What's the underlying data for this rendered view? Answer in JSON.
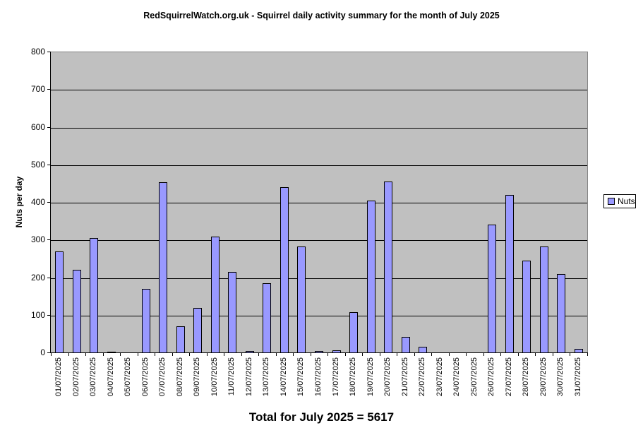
{
  "title": "RedSquirrelWatch.org.uk - Squirrel daily activity summary for the month of July 2025",
  "y_axis": {
    "label": "Nuts per day",
    "ticks": [
      "0",
      "100",
      "200",
      "300",
      "400",
      "500",
      "600",
      "700",
      "800"
    ]
  },
  "legend": {
    "label": "Nuts"
  },
  "footer": {
    "total_label": "Total for July 2025 = 5617"
  },
  "chart_data": {
    "type": "bar",
    "title": "RedSquirrelWatch.org.uk - Squirrel daily activity summary for the month of July 2025",
    "xlabel": "",
    "ylabel": "Nuts per day",
    "ylim": [
      0,
      800
    ],
    "ytick_step": 100,
    "grid": true,
    "legend_position": "right",
    "xtick_rotation": 90,
    "categories": [
      "01/07/2025",
      "02/07/2025",
      "03/07/2025",
      "04/07/2025",
      "05/07/2025",
      "06/07/2025",
      "07/07/2025",
      "08/07/2025",
      "09/07/2025",
      "10/07/2025",
      "11/07/2025",
      "12/07/2025",
      "13/07/2025",
      "14/07/2025",
      "15/07/2025",
      "16/07/2025",
      "17/07/2025",
      "18/07/2025",
      "19/07/2025",
      "20/07/2025",
      "21/07/2025",
      "22/07/2025",
      "23/07/2025",
      "24/07/2025",
      "25/07/2025",
      "26/07/2025",
      "27/07/2025",
      "28/07/2025",
      "29/07/2025",
      "30/07/2025",
      "31/07/2025"
    ],
    "series": [
      {
        "name": "Nuts",
        "values": [
          270,
          222,
          307,
          3,
          0,
          171,
          455,
          71,
          120,
          309,
          216,
          5,
          185,
          442,
          283,
          5,
          8,
          108,
          405,
          456,
          44,
          17,
          0,
          0,
          0,
          342,
          421,
          246,
          284,
          210,
          12
        ]
      }
    ],
    "total": 5617,
    "colors": {
      "bar_fill": "#9999FF",
      "bar_border": "#000000",
      "plot_bg": "#C0C0C0",
      "gridline": "#000000",
      "plot_border": "#848484",
      "background": "#FFFFFF"
    }
  }
}
